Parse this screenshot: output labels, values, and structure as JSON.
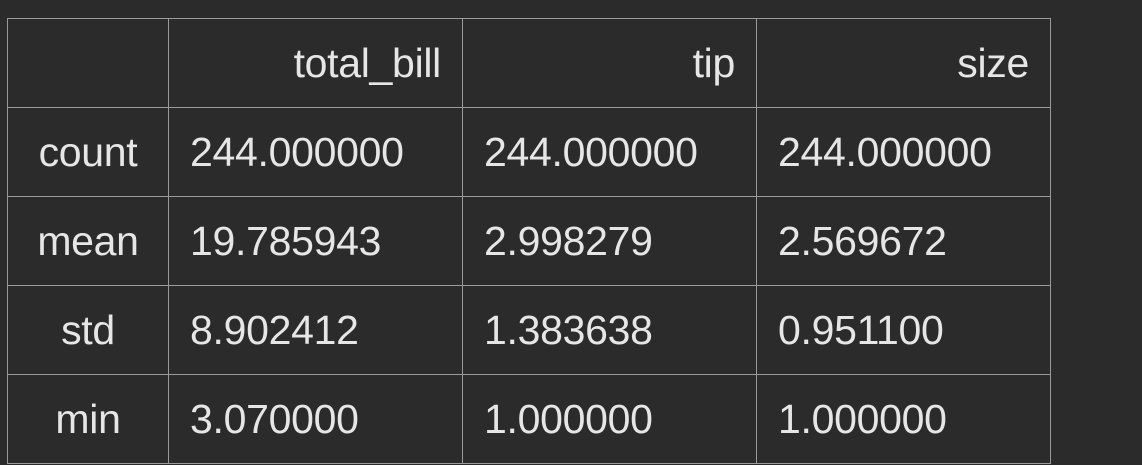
{
  "table": {
    "columns": [
      "",
      "total_bill",
      "tip",
      "size"
    ],
    "rows": [
      {
        "label": "count",
        "values": [
          "244.000000",
          "244.000000",
          "244.000000"
        ]
      },
      {
        "label": "mean",
        "values": [
          "19.785943",
          "2.998279",
          "2.569672"
        ]
      },
      {
        "label": "std",
        "values": [
          "8.902412",
          "1.383638",
          "0.951100"
        ]
      },
      {
        "label": "min",
        "values": [
          "3.070000",
          "1.000000",
          "1.000000"
        ]
      }
    ]
  }
}
